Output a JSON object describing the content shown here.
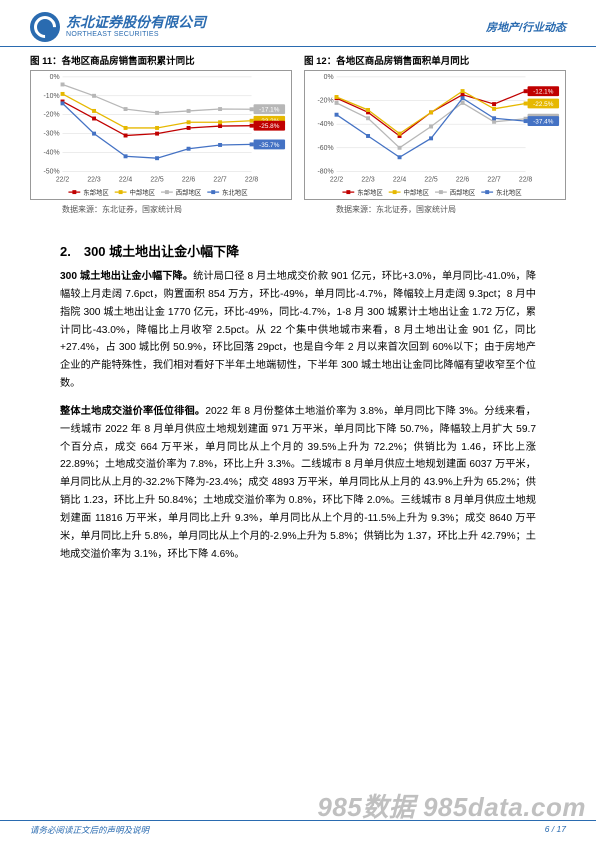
{
  "header": {
    "logo_cn": "东北证券股份有限公司",
    "logo_en": "NORTHEAST SECURITIES",
    "right_sector": "房地产",
    "right_sep": "/",
    "right_cat": "行业动态"
  },
  "chart11": {
    "title": "图 11：各地区商品房销售面积累计同比",
    "type": "line",
    "x_labels": [
      "22/2",
      "22/3",
      "22/4",
      "22/5",
      "22/6",
      "22/7",
      "22/8"
    ],
    "ylim": [
      -50,
      0
    ],
    "ytick_step": 10,
    "series": [
      {
        "name": "东部地区",
        "color": "#c00000",
        "marker": "square",
        "values": [
          -13,
          -22,
          -31,
          -30,
          -27,
          -26,
          -25.8
        ],
        "callout": "-25.8%"
      },
      {
        "name": "中部地区",
        "color": "#e6b800",
        "marker": "square",
        "values": [
          -9,
          -18,
          -27,
          -27,
          -24,
          -24,
          -23.2
        ],
        "callout": "-23.2%"
      },
      {
        "name": "西部地区",
        "color": "#b7b7b7",
        "marker": "square",
        "values": [
          -4,
          -10,
          -17,
          -19,
          -18,
          -17,
          -17.1
        ],
        "callout": "-17.1%"
      },
      {
        "name": "东北地区",
        "color": "#4472c4",
        "marker": "square",
        "values": [
          -14,
          -30,
          -42,
          -43,
          -38,
          -36,
          -35.7
        ],
        "callout": "-35.7%"
      }
    ],
    "grid_color": "#d9d9d9",
    "background": "#ffffff",
    "axis_fontsize": 7,
    "source": "数据来源：东北证券，国家统计局"
  },
  "chart12": {
    "title": "图 12：各地区商品房销售面积单月同比",
    "type": "line",
    "x_labels": [
      "22/2",
      "22/3",
      "22/4",
      "22/5",
      "22/6",
      "22/7",
      "22/8"
    ],
    "ylim": [
      -80,
      0
    ],
    "ytick_step": 20,
    "series": [
      {
        "name": "东部地区",
        "color": "#c00000",
        "marker": "square",
        "values": [
          -18,
          -30,
          -50,
          -30,
          -15,
          -23,
          -12.1
        ],
        "callout": "-12.1%"
      },
      {
        "name": "中部地区",
        "color": "#e6b800",
        "marker": "square",
        "values": [
          -17,
          -28,
          -48,
          -30,
          -12,
          -27,
          -22.5
        ],
        "callout": "-22.5%"
      },
      {
        "name": "西部地区",
        "color": "#b7b7b7",
        "marker": "square",
        "values": [
          -22,
          -35,
          -60,
          -42,
          -22,
          -38,
          -35.4
        ],
        "callout": "-35.4%"
      },
      {
        "name": "东北地区",
        "color": "#4472c4",
        "marker": "square",
        "values": [
          -32,
          -50,
          -68,
          -52,
          -18,
          -35,
          -37.4
        ],
        "callout": "-37.4%"
      }
    ],
    "grid_color": "#d9d9d9",
    "background": "#ffffff",
    "axis_fontsize": 7,
    "source": "数据来源：东北证券，国家统计局"
  },
  "section2": {
    "heading": "2.　300 城土地出让金小幅下降",
    "para1_bold": "300 城土地出让金小幅下降。",
    "para1": "统计局口径 8 月土地成交价款 901 亿元，环比+3.0%，单月同比-41.0%，降幅较上月走阔 7.6pct，购置面积 854 万方，环比-49%，单月同比-4.7%，降幅较上月走阔 9.3pct；8 月中指院 300 城土地出让金 1770 亿元，环比-49%，同比-4.7%，1-8 月 300 城累计土地出让金 1.72 万亿，累计同比-43.0%，降幅比上月收窄 2.5pct。从 22 个集中供地城市来看，8 月土地出让金 901 亿，同比+27.4%，占 300 城比例 50.9%，环比回落 29pct，也是自今年 2 月以来首次回到 60%以下；由于房地产企业的产能特殊性，我们相对看好下半年土地端韧性，下半年 300 城土地出让金同比降幅有望收窄至个位数。",
    "para2_bold": "整体土地成交溢价率低位徘徊。",
    "para2": "2022 年 8 月份整体土地溢价率为 3.8%，单月同比下降 3%。分线来看，一线城市 2022 年 8 月单月供应土地规划建面 971 万平米，单月同比下降 50.7%，降幅较上月扩大 59.7 个百分点，成交 664 万平米，单月同比从上个月的 39.5%上升为 72.2%；供销比为 1.46，环比上涨 22.89%；土地成交溢价率为 7.8%，环比上升 3.3%。二线城市 8 月单月供应土地规划建面 6037 万平米，单月同比从上月的-32.2%下降为-23.4%；成交 4893 万平米，单月同比从上月的 43.9%上升为 65.2%；供销比 1.23，环比上升 50.84%；土地成交溢价率为 0.8%，环比下降 2.0%。三线城市 8 月单月供应土地规划建面 11816 万平米，单月同比上升 9.3%，单月同比从上个月的-11.5%上升为 9.3%；成交 8640 万平米，单月同比上升 5.8%，单月同比从上个月的-2.9%上升为 5.8%；供销比为 1.37，环比上升 42.79%；土地成交溢价率为 3.1%，环比下降 4.6%。"
  },
  "footer": {
    "left": "请务必阅读正文后的声明及说明",
    "right": "6 / 17"
  },
  "watermark": "985数据 985data.com"
}
